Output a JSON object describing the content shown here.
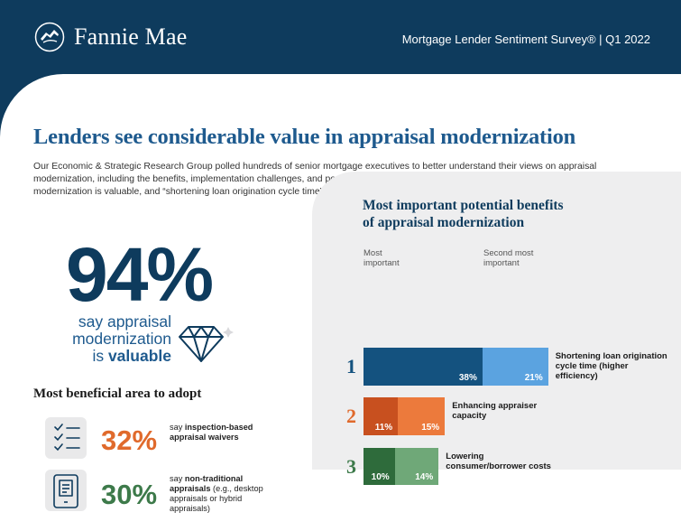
{
  "header": {
    "brand": "Fannie Mae",
    "survey": "Mortgage Lender Sentiment Survey® | Q1 2022"
  },
  "headline": "Lenders see considerable value in appraisal modernization",
  "intro": "Our Economic & Strategic Research Group polled hundreds of senior mortgage executives to better understand their views on appraisal modernization, including the benefits, implementation challenges, and possible applications. Among the findings: 94% of lenders believe appraisal modernization is valuable, and “shortening loan origination cycle time” was overwhelmingly cited as the most important potential benefit.",
  "stat": {
    "value": "94%",
    "line1": "say appraisal",
    "line2": "modernization",
    "line3_pre": "is ",
    "line3_bold": "valuable"
  },
  "areas": {
    "title": "Most beneficial area to adopt",
    "items": [
      {
        "pct": "32%",
        "pre": "say ",
        "bold": "inspection-based appraisal waivers",
        "rest": "",
        "color": "#e06a2c"
      },
      {
        "pct": "30%",
        "pre": "say ",
        "bold": "non-traditional appraisals",
        "rest": " (e.g., desktop appraisals or hybrid appraisals)",
        "color": "#3d7a4a"
      }
    ]
  },
  "benefits": {
    "title_line1": "Most important potential benefits",
    "title_line2": "of appraisal modernization",
    "col_most": "Most important",
    "col_second": "Second most important"
  },
  "chart_data": {
    "type": "bar",
    "stacked": true,
    "orientation": "horizontal",
    "categories": [
      "Shortening loan origination cycle time (higher efficiency)",
      "Enhancing appraiser capacity",
      "Lowering consumer/borrower costs"
    ],
    "ranks": [
      "1",
      "2",
      "3"
    ],
    "rank_colors": [
      "#14527f",
      "#e06a2c",
      "#3d7a4a"
    ],
    "series": [
      {
        "name": "Most important",
        "values": [
          38,
          11,
          10
        ],
        "colors": [
          "#14527f",
          "#c8501f",
          "#2e6b3b"
        ]
      },
      {
        "name": "Second most important",
        "values": [
          21,
          15,
          14
        ],
        "colors": [
          "#5ba3e0",
          "#ec7a3c",
          "#6fa878"
        ]
      }
    ],
    "value_labels": [
      [
        "38%",
        "21%"
      ],
      [
        "11%",
        "15%"
      ],
      [
        "10%",
        "14%"
      ]
    ]
  }
}
